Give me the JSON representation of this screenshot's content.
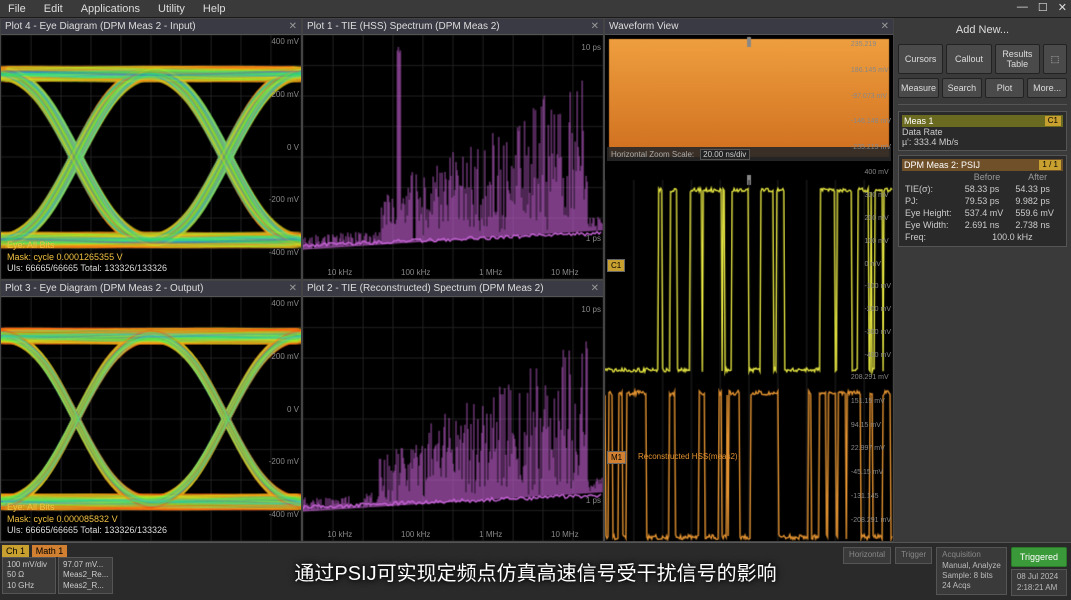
{
  "menu": {
    "file": "File",
    "edit": "Edit",
    "applications": "Applications",
    "utility": "Utility",
    "help": "Help"
  },
  "plot4": {
    "title": "Plot 4 - Eye Diagram (DPM Meas 2 - Input)",
    "ylabels": [
      "400 mV",
      "200 mV",
      "0 V",
      "-200 mV",
      "-400 mV"
    ],
    "info1": "Eye: All Bits",
    "info2": "Mask: cycle 0.0001265355 V",
    "info3": "UIs: 66665/66665  Total: 133326/133326",
    "xlabels": [
      "1 ns",
      "2 ns"
    ]
  },
  "plot1": {
    "title": "Plot 1 - TIE (HSS) Spectrum (DPM Meas 2)",
    "ylabels": [
      "10 ps",
      "1 ps"
    ],
    "xlabels": [
      "10 kHz",
      "100 kHz",
      "1 MHz",
      "10 MHz"
    ]
  },
  "plot3": {
    "title": "Plot 3 - Eye Diagram (DPM Meas 2 - Output)",
    "ylabels": [
      "400 mV",
      "200 mV",
      "0 V",
      "-200 mV",
      "-400 mV"
    ],
    "info1": "Eye: All Bits",
    "info2": "Mask: cycle 0.000085832 V",
    "info3": "UIs: 66665/66665  Total: 133326/133326",
    "xlabels": [
      "1 ns",
      "2 ns"
    ]
  },
  "plot2": {
    "title": "Plot 2 - TIE (Reconstructed) Spectrum (DPM Meas 2)",
    "ylabels": [
      "10 ps",
      "1 ps"
    ],
    "xlabels": [
      "10 kHz",
      "100 kHz",
      "1 MHz",
      "10 MHz"
    ]
  },
  "wave": {
    "title": "Waveform View",
    "zoom_lbl": "Horizontal Zoom Scale:",
    "zoom_val": "20.00 ns/div",
    "c1": "C1",
    "m1": "M1",
    "recon": "Reconstructed HSS(meas2)",
    "top_ylabels": [
      "235.219",
      "186.145 mV",
      "-97.073 mV",
      "-146.148 mV",
      "-235.219 mV"
    ],
    "mid_ylabels": [
      "400 mV",
      "300 mV",
      "200 mV",
      "100 mV",
      "0 mV",
      "-100 mV",
      "-200 mV",
      "-300 mV",
      "-400 mV"
    ],
    "bot_ylabels": [
      "208.291 mV",
      "151.15 mV",
      "94.15 mV",
      "22.997 mV",
      "-45.15 mV",
      "-131.145",
      "-208.291 mV"
    ],
    "xlabels": [
      "-80 ns",
      "-60 ns",
      "-40 ns",
      "-20 ns",
      "0 ns",
      "20 ns",
      "40 ns",
      "60 ns",
      "80 ns"
    ]
  },
  "side": {
    "addnew": "Add New...",
    "cursors": "Cursors",
    "callout": "Callout",
    "results": "Results Table",
    "measure": "Measure",
    "search": "Search",
    "plot": "Plot",
    "more": "More...",
    "meas1": {
      "hdr": "Meas 1",
      "tag": "C1",
      "l1": "Data Rate",
      "l2": "µ': 333.4 Mb/s"
    },
    "dpm": {
      "hdr": "DPM Meas 2: PSIJ",
      "tag": "1 / 1",
      "cols": [
        "",
        "Before",
        "After"
      ],
      "rows": [
        [
          "TIE(σ):",
          "58.33 ps",
          "54.33 ps"
        ],
        [
          "PJ:",
          "79.53 ps",
          "9.982 ps"
        ],
        [
          "Eye Height:",
          "537.4 mV",
          "559.6 mV"
        ],
        [
          "Eye Width:",
          "2.691 ns",
          "2.738 ns"
        ],
        [
          "Freq:",
          "100.0 kHz",
          ""
        ]
      ]
    }
  },
  "bottom": {
    "ch1_tab": "Ch 1",
    "math_tab": "Math 1",
    "ch1": [
      "100 mV/div",
      "50 Ω",
      "10 GHz"
    ],
    "math": [
      "97.07 mV...",
      "Meas2_Re...",
      "Meas2_R..."
    ],
    "subtitle": "通过PSIJ可实现定频点仿真高速信号受干扰信号的影响",
    "acq_hdr": "Acquisition",
    "acq": [
      "Manual, Analyze",
      "Sample: 8 bits",
      "24 Acqs"
    ],
    "trigger_hdr": "Trigger",
    "horiz_hdr": "Horizontal",
    "date": "08 Jul 2024",
    "time": "2:18:21 AM",
    "trig": "Triggered"
  },
  "colors": {
    "eye_grad": [
      "#3a2aff",
      "#20d0d0",
      "#40f040",
      "#f0f020",
      "#ff8010",
      "#ff2010"
    ],
    "spectrum": "#c060d0",
    "wave_top": "#f0a040",
    "wave_c1": "#e0e040",
    "wave_m1": "#e09030"
  }
}
